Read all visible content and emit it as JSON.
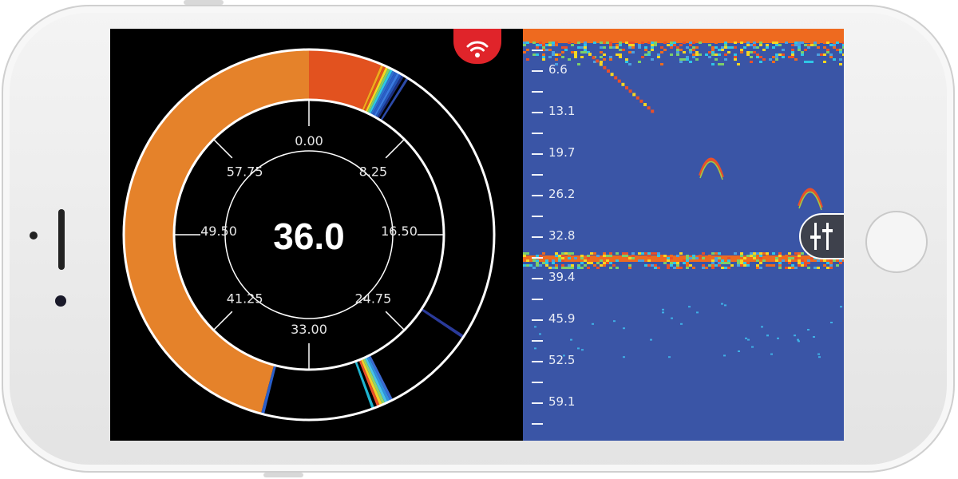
{
  "dial": {
    "center_value": "36.0",
    "scale_labels": [
      "0.00",
      "8.25",
      "16.50",
      "24.75",
      "33.00",
      "41.25",
      "49.50",
      "57.75"
    ]
  },
  "status": {
    "icon": "wifi-icon",
    "color": "#e0242a"
  },
  "sonar": {
    "depth_labels": [
      "6.6",
      "13.1",
      "19.7",
      "26.2",
      "32.8",
      "39.4",
      "45.9",
      "52.5",
      "59.1"
    ],
    "background_color": "#3a55a6",
    "settings_icon": "sliders-icon"
  },
  "device": {
    "home_button": "home-button"
  }
}
